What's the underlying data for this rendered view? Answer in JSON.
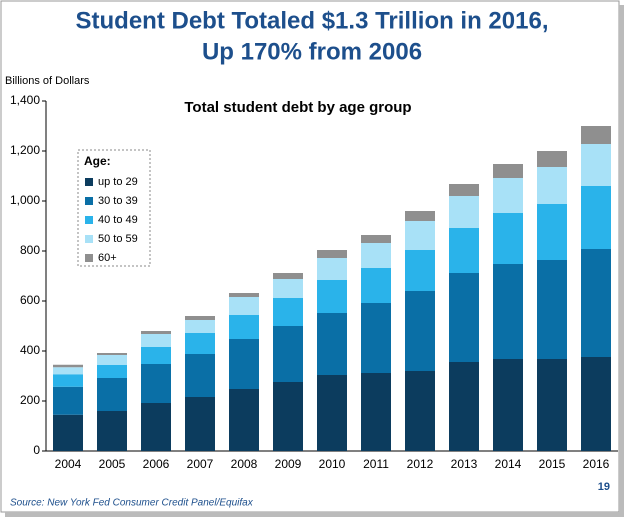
{
  "chart_data": {
    "type": "stacked-bar",
    "title_lines": [
      "Student Debt Totaled $1.3 Trillion in 2016,",
      "Up 170% from 2006"
    ],
    "subtitle": "Total student debt by age group",
    "y_label": "Billions of Dollars",
    "legend_title": "Age:",
    "source": "Source: New York Fed Consumer Credit Panel/Equifax",
    "page_number": "19",
    "categories": [
      "2004",
      "2005",
      "2006",
      "2007",
      "2008",
      "2009",
      "2010",
      "2011",
      "2012",
      "2013",
      "2014",
      "2015",
      "2016"
    ],
    "series": [
      {
        "name": "up to 29",
        "color": "#0c3c5e",
        "values": [
          145,
          160,
          192,
          216,
          248,
          276,
          304,
          312,
          320,
          356,
          368,
          368,
          376
        ]
      },
      {
        "name": "30 to 39",
        "color": "#0a6fa6",
        "values": [
          112,
          132,
          156,
          172,
          200,
          224,
          248,
          280,
          320,
          356,
          380,
          396,
          432
        ]
      },
      {
        "name": "40 to 49",
        "color": "#2ab3ea",
        "values": [
          50,
          52,
          68,
          84,
          96,
          112,
          132,
          140,
          164,
          180,
          204,
          224,
          252
        ]
      },
      {
        "name": "50 to 59",
        "color": "#a8e1f7",
        "values": [
          28,
          40,
          52,
          52,
          72,
          76,
          88,
          100,
          116,
          128,
          140,
          148,
          168
        ]
      },
      {
        "name": "60+",
        "color": "#8f8f8f",
        "values": [
          10,
          8,
          12,
          16,
          16,
          24,
          32,
          32,
          40,
          48,
          56,
          64,
          72
        ]
      }
    ],
    "ylim": [
      0,
      1400
    ],
    "yticks": [
      0,
      200,
      400,
      600,
      800,
      {
        "value": 1000,
        "label": "1,000"
      },
      {
        "value": 1200,
        "label": "1,200"
      },
      {
        "value": 1400,
        "label": "1,400"
      }
    ],
    "grid": false,
    "legend_position": "upper-left"
  }
}
